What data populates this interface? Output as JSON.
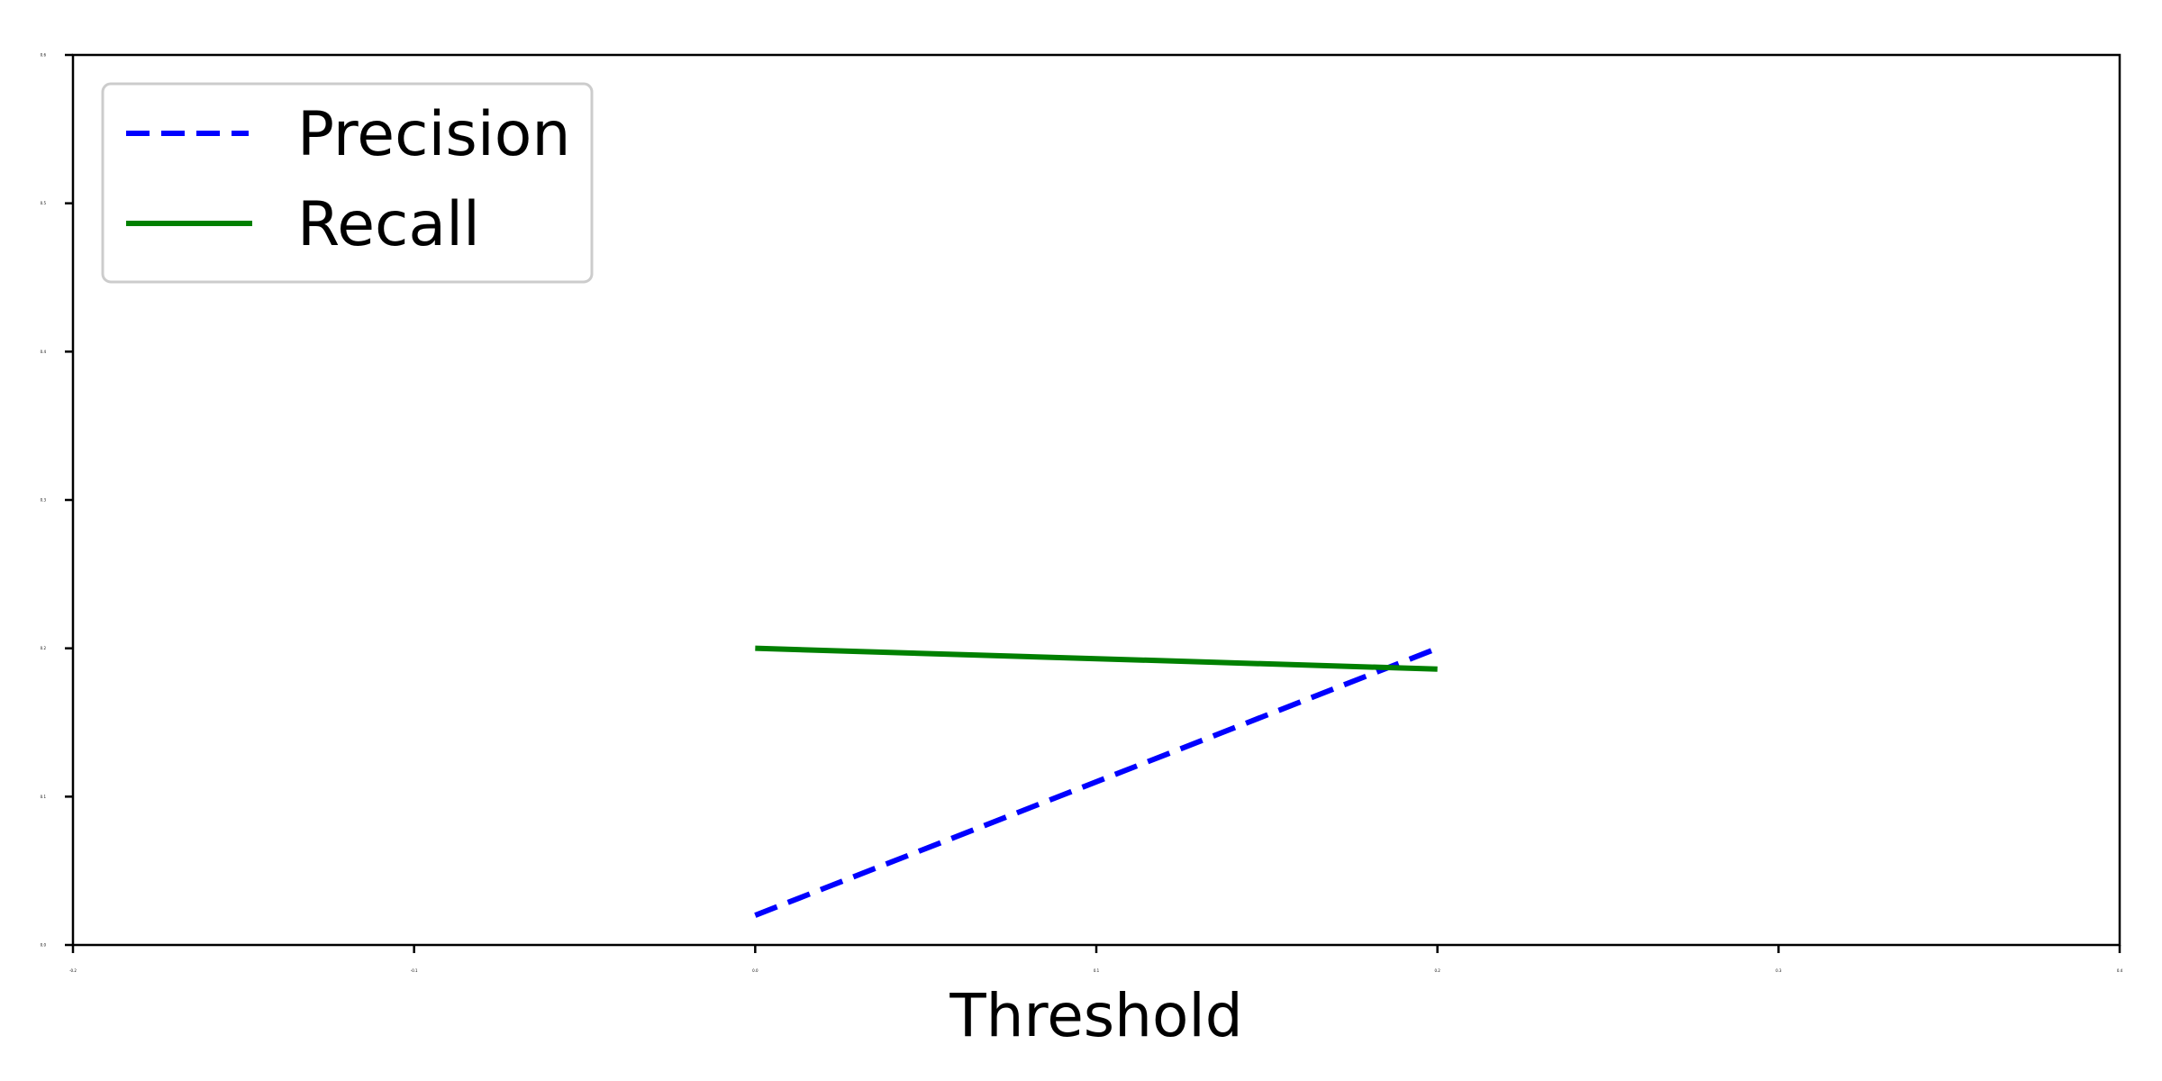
{
  "chart_data": {
    "type": "line",
    "title": "",
    "xlabel": "Threshold",
    "ylabel": "",
    "xlim": [
      -0.2,
      0.4
    ],
    "ylim": [
      0.0,
      0.6
    ],
    "xticks": [
      -0.2,
      -0.1,
      0.0,
      0.1,
      0.2,
      0.3,
      0.4
    ],
    "xtick_labels": [
      "-0.2",
      "-0.1",
      "0.0",
      "0.1",
      "0.2",
      "0.3",
      "0.4"
    ],
    "yticks": [
      0.0,
      0.1,
      0.2,
      0.3,
      0.4,
      0.5,
      0.6
    ],
    "ytick_labels": [
      "0.0",
      "0.1",
      "0.2",
      "0.3",
      "0.4",
      "0.5",
      "0.6"
    ],
    "grid": false,
    "legend_position": "top-left",
    "series": [
      {
        "name": "Precision",
        "x": [
          0.0,
          0.2
        ],
        "y": [
          0.02,
          0.2
        ],
        "color": "#0000ff",
        "style": "dashed"
      },
      {
        "name": "Recall",
        "x": [
          0.0,
          0.2
        ],
        "y": [
          0.2,
          0.186
        ],
        "color": "#008000",
        "style": "solid"
      }
    ]
  }
}
